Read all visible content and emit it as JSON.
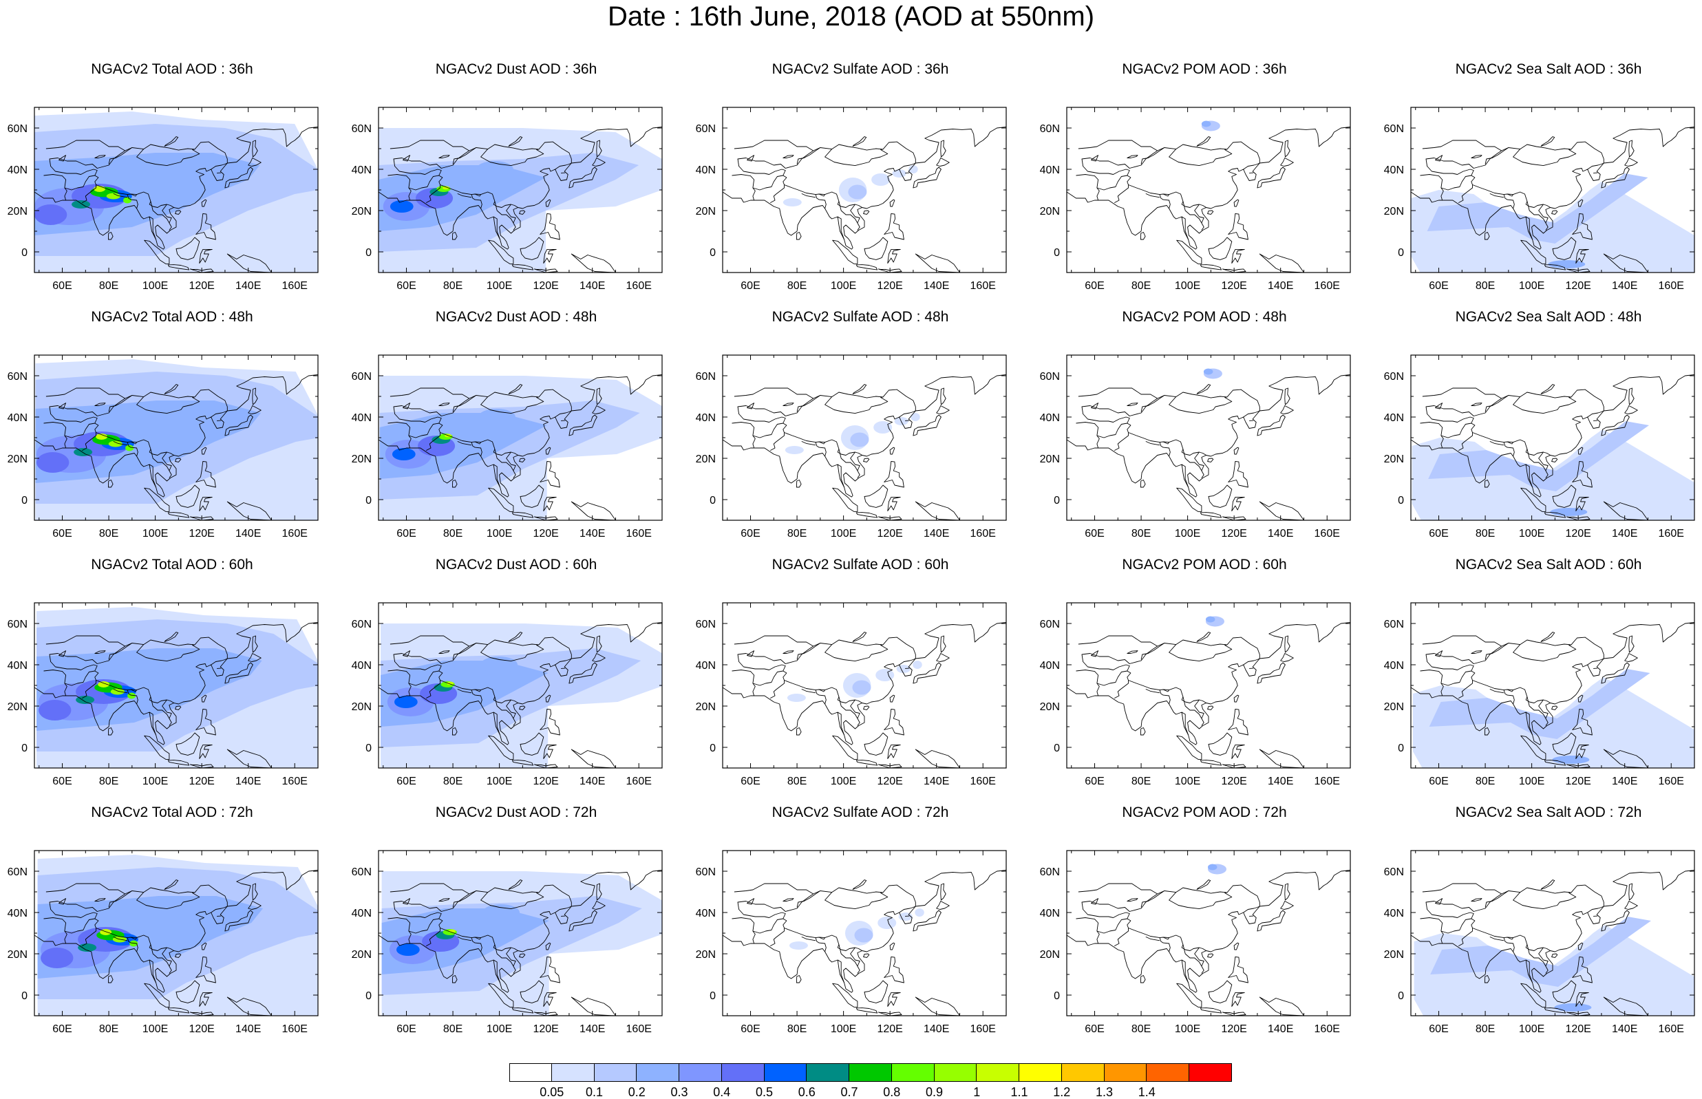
{
  "title": "Date : 16th June, 2018 (AOD at 550nm)",
  "axes": {
    "lon_ticks": [
      "60E",
      "80E",
      "100E",
      "120E",
      "140E",
      "160E"
    ],
    "lat_ticks": [
      "60N",
      "40N",
      "20N",
      "0"
    ]
  },
  "panels": [
    {
      "title": "NGACv2 Total AOD : 36h",
      "species": "total",
      "lead_hours": 36
    },
    {
      "title": "NGACv2 Dust AOD : 36h",
      "species": "dust",
      "lead_hours": 36
    },
    {
      "title": "NGACv2 Sulfate AOD : 36h",
      "species": "sulfate",
      "lead_hours": 36
    },
    {
      "title": "NGACv2 POM AOD : 36h",
      "species": "pom",
      "lead_hours": 36
    },
    {
      "title": "NGACv2 Sea Salt AOD : 36h",
      "species": "seasalt",
      "lead_hours": 36
    },
    {
      "title": "NGACv2 Total AOD : 48h",
      "species": "total",
      "lead_hours": 48
    },
    {
      "title": "NGACv2 Dust AOD : 48h",
      "species": "dust",
      "lead_hours": 48
    },
    {
      "title": "NGACv2 Sulfate AOD : 48h",
      "species": "sulfate",
      "lead_hours": 48
    },
    {
      "title": "NGACv2 POM AOD : 48h",
      "species": "pom",
      "lead_hours": 48
    },
    {
      "title": "NGACv2 Sea Salt AOD : 48h",
      "species": "seasalt",
      "lead_hours": 48
    },
    {
      "title": "NGACv2 Total AOD : 60h",
      "species": "total",
      "lead_hours": 60
    },
    {
      "title": "NGACv2 Dust AOD : 60h",
      "species": "dust",
      "lead_hours": 60
    },
    {
      "title": "NGACv2 Sulfate AOD : 60h",
      "species": "sulfate",
      "lead_hours": 60
    },
    {
      "title": "NGACv2 POM AOD : 60h",
      "species": "pom",
      "lead_hours": 60
    },
    {
      "title": "NGACv2 Sea Salt AOD : 60h",
      "species": "seasalt",
      "lead_hours": 60
    },
    {
      "title": "NGACv2 Total AOD : 72h",
      "species": "total",
      "lead_hours": 72
    },
    {
      "title": "NGACv2 Dust AOD : 72h",
      "species": "dust",
      "lead_hours": 72
    },
    {
      "title": "NGACv2 Sulfate AOD : 72h",
      "species": "sulfate",
      "lead_hours": 72
    },
    {
      "title": "NGACv2 POM AOD : 72h",
      "species": "pom",
      "lead_hours": 72
    },
    {
      "title": "NGACv2 Sea Salt  AOD : 72h",
      "species": "seasalt",
      "lead_hours": 72
    }
  ],
  "colorbar": {
    "labels": [
      "0.05",
      "0.1",
      "0.2",
      "0.3",
      "0.4",
      "0.5",
      "0.6",
      "0.7",
      "0.8",
      "0.9",
      "1",
      "1.1",
      "1.2",
      "1.3",
      "1.4"
    ],
    "colors": [
      "#ffffff",
      "#d6e2ff",
      "#b5c9ff",
      "#8eb2ff",
      "#7f96ff",
      "#6370f8",
      "#0062ff",
      "#008c84",
      "#00c800",
      "#64ff00",
      "#96ff00",
      "#c8ff00",
      "#ffff00",
      "#ffc800",
      "#ff9600",
      "#ff6400",
      "#ff0000"
    ]
  }
}
